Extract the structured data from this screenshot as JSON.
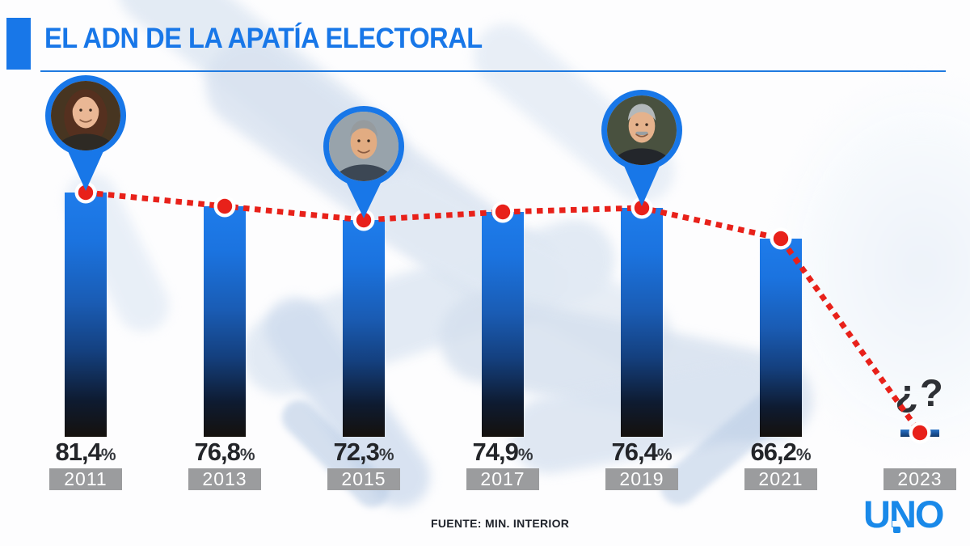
{
  "header": {
    "title": "EL ADN DE LA APATÍA ELECTORAL",
    "accent_color": "#1877e8"
  },
  "chart_data": {
    "type": "bar",
    "title": "EL ADN DE LA APATÍA ELECTORAL",
    "categories": [
      "2011",
      "2013",
      "2015",
      "2017",
      "2019",
      "2021",
      "2023"
    ],
    "values": [
      81.4,
      76.8,
      72.3,
      74.9,
      76.4,
      66.2,
      null
    ],
    "value_labels": [
      "81,4",
      "76,8",
      "72,3",
      "74,9",
      "76,4",
      "66,2"
    ],
    "unit_suffix": "%",
    "unknown_label": "¿?",
    "ylim": [
      0,
      100
    ],
    "grid": false,
    "legend": "none",
    "bar_gradient_top": "#1e7ceb",
    "bar_gradient_bottom": "#15110d",
    "year_box_color": "#9b9c9e",
    "trend_line": {
      "style": "dotted",
      "color": "#e8211a",
      "marker": "red-dot-white-ring",
      "connects": [
        81.4,
        76.8,
        72.3,
        74.9,
        76.4,
        66.2,
        "unknown-2023"
      ]
    },
    "pins": [
      {
        "category": "2011",
        "person": "cristina-fernandez-de-kirchner"
      },
      {
        "category": "2015",
        "person": "mauricio-macri"
      },
      {
        "category": "2019",
        "person": "alberto-fernandez"
      }
    ]
  },
  "footer": {
    "source": "FUENTE: MIN. INTERIOR",
    "logo_text": "UNO",
    "logo_color": "#1989e9"
  }
}
